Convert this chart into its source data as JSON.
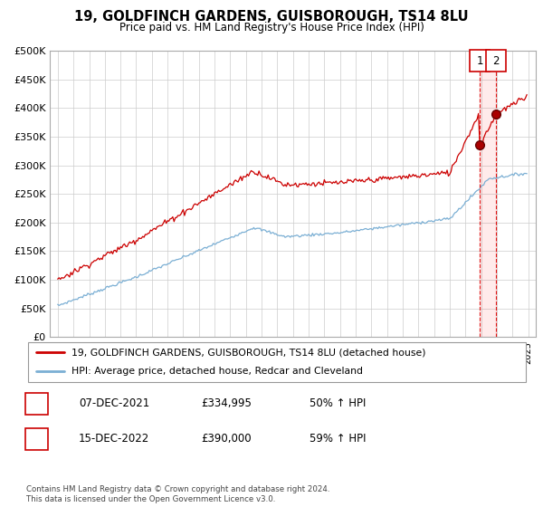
{
  "title": "19, GOLDFINCH GARDENS, GUISBOROUGH, TS14 8LU",
  "subtitle": "Price paid vs. HM Land Registry's House Price Index (HPI)",
  "legend_line1": "19, GOLDFINCH GARDENS, GUISBOROUGH, TS14 8LU (detached house)",
  "legend_line2": "HPI: Average price, detached house, Redcar and Cleveland",
  "footer": "Contains HM Land Registry data © Crown copyright and database right 2024.\nThis data is licensed under the Open Government Licence v3.0.",
  "transaction1_label": "1",
  "transaction1_date": "07-DEC-2021",
  "transaction1_price": "£334,995",
  "transaction1_hpi": "50% ↑ HPI",
  "transaction2_label": "2",
  "transaction2_date": "15-DEC-2022",
  "transaction2_price": "£390,000",
  "transaction2_hpi": "59% ↑ HPI",
  "transaction1_x": 2021.92,
  "transaction1_y": 334995,
  "transaction2_x": 2022.96,
  "transaction2_y": 390000,
  "hpi_color": "#7bafd4",
  "price_color": "#cc0000",
  "ylim": [
    0,
    500000
  ],
  "yticks": [
    0,
    50000,
    100000,
    150000,
    200000,
    250000,
    300000,
    350000,
    400000,
    450000,
    500000
  ],
  "xlim_min": 1994.5,
  "xlim_max": 2025.5,
  "grid_color": "#cccccc"
}
